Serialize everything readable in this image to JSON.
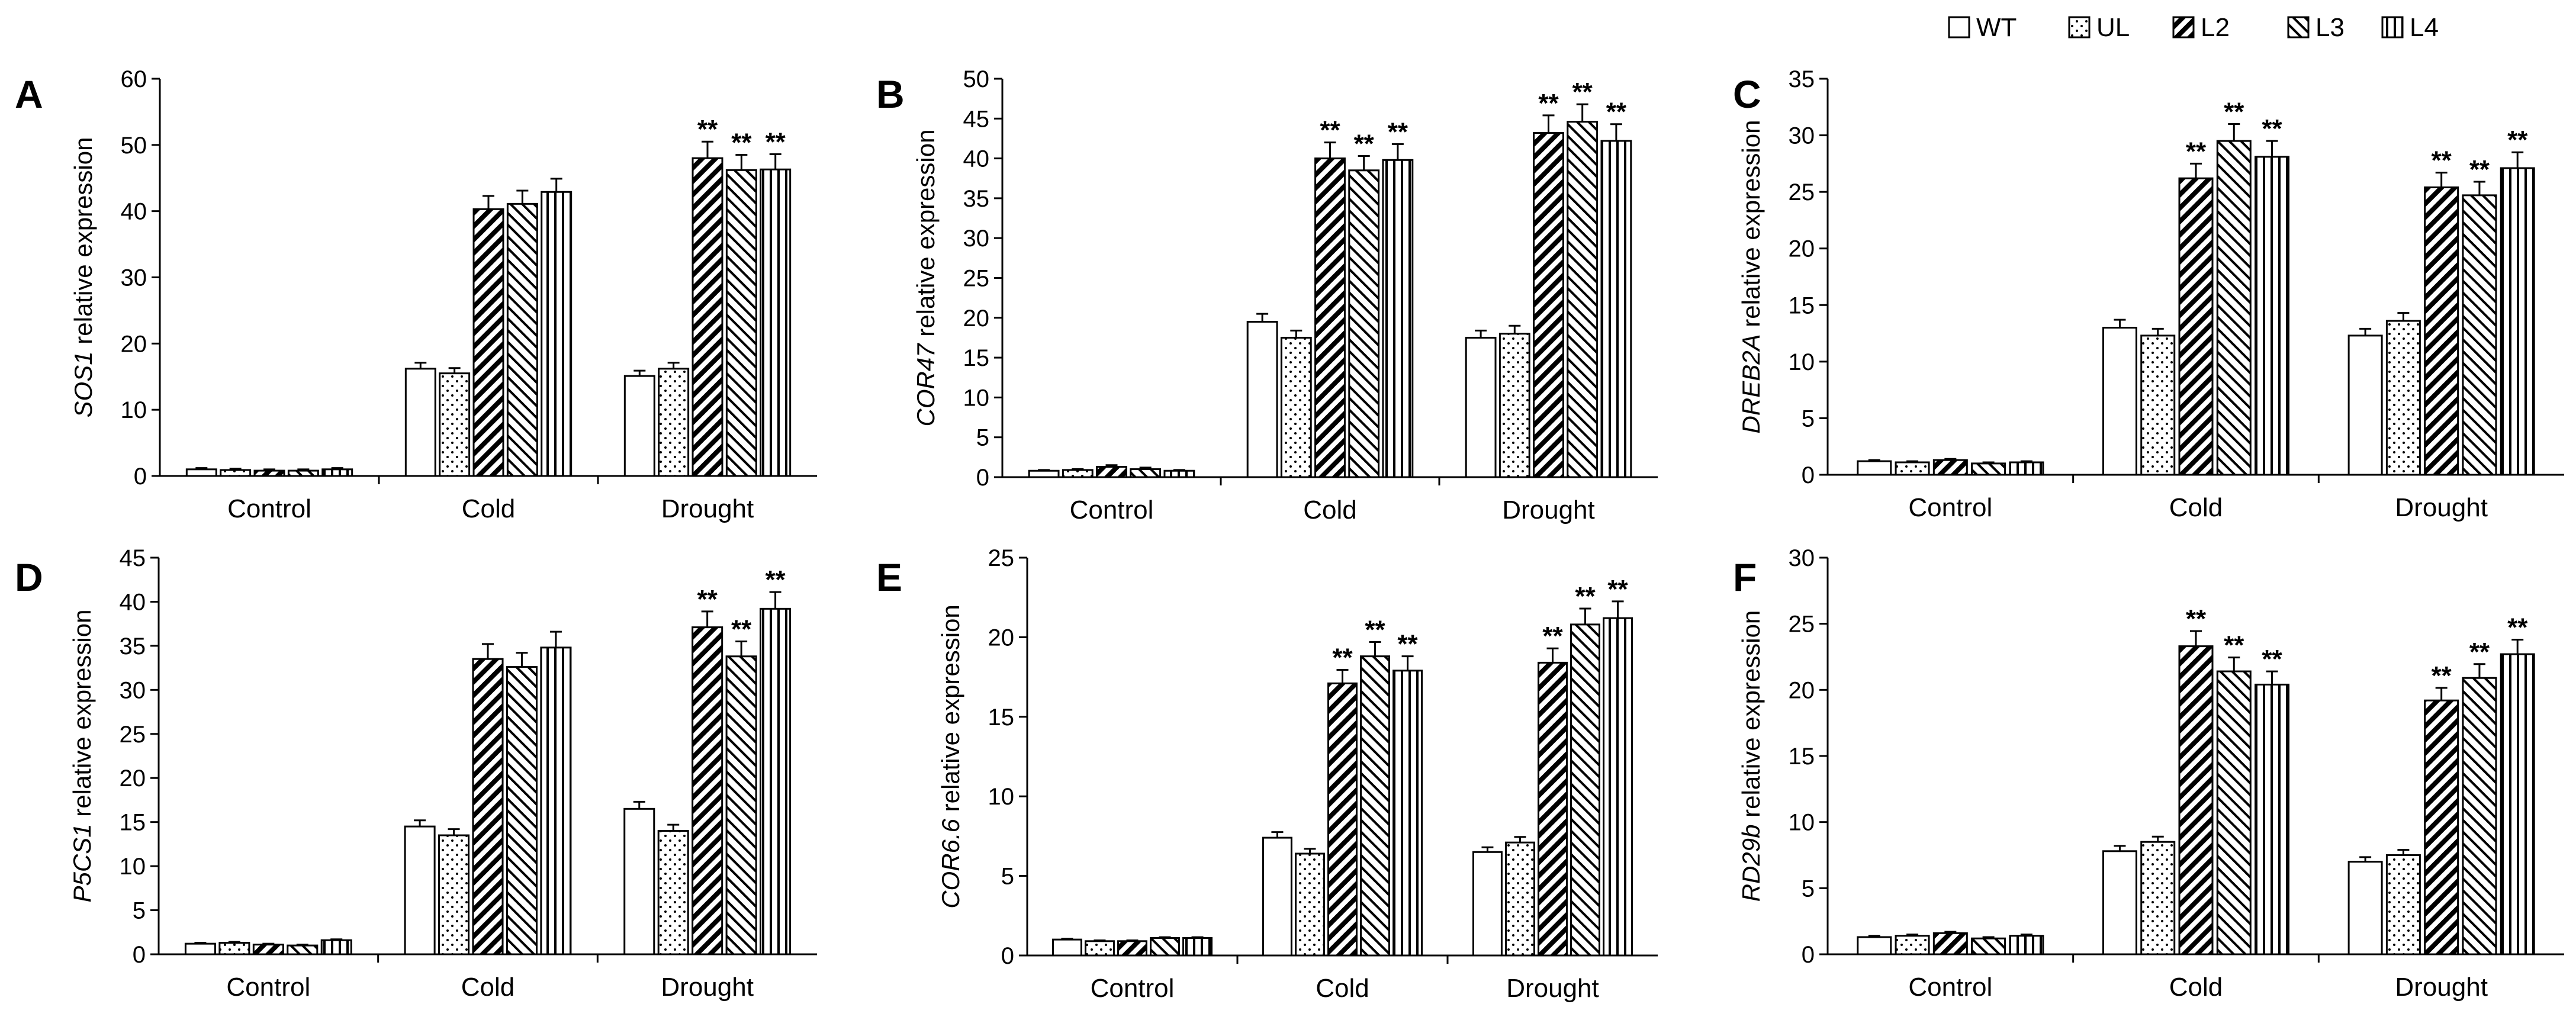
{
  "legend": [
    "WT",
    "UL",
    "L2",
    "L3",
    "L4"
  ],
  "chart_data": [
    {
      "type": "bar",
      "panel": "A",
      "ylabel_gene": "SOS1",
      "ylabel_rest": " relative expression",
      "categories": [
        "Control",
        "Cold",
        "Drought"
      ],
      "ylim": [
        0,
        60
      ],
      "yticks": [
        0,
        10,
        20,
        30,
        40,
        50,
        60
      ],
      "series": [
        {
          "name": "WT",
          "values": [
            1.0,
            16.2,
            15.1
          ],
          "errors": [
            0.2,
            0.9,
            0.8
          ]
        },
        {
          "name": "UL",
          "values": [
            0.9,
            15.5,
            16.2
          ],
          "errors": [
            0.2,
            0.8,
            0.9
          ]
        },
        {
          "name": "L2",
          "values": [
            0.8,
            40.3,
            48.0
          ],
          "errors": [
            0.2,
            2.0,
            2.5
          ]
        },
        {
          "name": "L3",
          "values": [
            0.8,
            41.1,
            46.2
          ],
          "errors": [
            0.2,
            2.0,
            2.3
          ]
        },
        {
          "name": "L4",
          "values": [
            1.0,
            42.9,
            46.3
          ],
          "errors": [
            0.2,
            2.0,
            2.3
          ]
        }
      ],
      "significance": [
        [
          "",
          "",
          ""
        ],
        [
          "",
          "",
          ""
        ],
        [
          "",
          "",
          "**"
        ],
        [
          "",
          "",
          "**"
        ],
        [
          "",
          "",
          "**"
        ]
      ]
    },
    {
      "type": "bar",
      "panel": "B",
      "ylabel_gene": "COR47",
      "ylabel_rest": " relative expression",
      "categories": [
        "Control",
        "Cold",
        "Drought"
      ],
      "ylim": [
        0,
        50
      ],
      "yticks": [
        0,
        5,
        10,
        15,
        20,
        25,
        30,
        35,
        40,
        45,
        50
      ],
      "series": [
        {
          "name": "WT",
          "values": [
            0.8,
            19.5,
            17.5
          ],
          "errors": [
            0.1,
            1.0,
            0.9
          ]
        },
        {
          "name": "UL",
          "values": [
            0.9,
            17.5,
            18.0
          ],
          "errors": [
            0.1,
            0.9,
            1.0
          ]
        },
        {
          "name": "L2",
          "values": [
            1.3,
            40.0,
            43.2
          ],
          "errors": [
            0.2,
            2.0,
            2.2
          ]
        },
        {
          "name": "L3",
          "values": [
            1.0,
            38.5,
            44.6
          ],
          "errors": [
            0.2,
            1.8,
            2.2
          ]
        },
        {
          "name": "L4",
          "values": [
            0.8,
            39.8,
            42.2
          ],
          "errors": [
            0.1,
            2.0,
            2.1
          ]
        }
      ],
      "significance": [
        [
          "",
          "",
          ""
        ],
        [
          "",
          "",
          ""
        ],
        [
          "",
          "**",
          "**"
        ],
        [
          "",
          "**",
          "**"
        ],
        [
          "",
          "**",
          "**"
        ]
      ]
    },
    {
      "type": "bar",
      "panel": "C",
      "ylabel_gene": "DREB2A",
      "ylabel_rest": " relative expression",
      "categories": [
        "Control",
        "Cold",
        "Drought"
      ],
      "ylim": [
        0,
        35
      ],
      "yticks": [
        0,
        5,
        10,
        15,
        20,
        25,
        30,
        35
      ],
      "series": [
        {
          "name": "WT",
          "values": [
            1.2,
            13.0,
            12.3
          ],
          "errors": [
            0.1,
            0.7,
            0.6
          ]
        },
        {
          "name": "UL",
          "values": [
            1.1,
            12.3,
            13.6
          ],
          "errors": [
            0.1,
            0.6,
            0.7
          ]
        },
        {
          "name": "L2",
          "values": [
            1.3,
            26.2,
            25.4
          ],
          "errors": [
            0.1,
            1.3,
            1.3
          ]
        },
        {
          "name": "L3",
          "values": [
            1.0,
            29.5,
            24.7
          ],
          "errors": [
            0.1,
            1.5,
            1.2
          ]
        },
        {
          "name": "L4",
          "values": [
            1.1,
            28.1,
            27.1
          ],
          "errors": [
            0.1,
            1.4,
            1.4
          ]
        }
      ],
      "significance": [
        [
          "",
          "",
          ""
        ],
        [
          "",
          "",
          ""
        ],
        [
          "",
          "**",
          "**"
        ],
        [
          "",
          "**",
          "**"
        ],
        [
          "",
          "**",
          "**"
        ]
      ]
    },
    {
      "type": "bar",
      "panel": "D",
      "ylabel_gene": "P5CS1",
      "ylabel_rest": " relative expression",
      "categories": [
        "Control",
        "Cold",
        "Drought"
      ],
      "ylim": [
        0,
        45
      ],
      "yticks": [
        0,
        5,
        10,
        15,
        20,
        25,
        30,
        35,
        40,
        45
      ],
      "series": [
        {
          "name": "WT",
          "values": [
            1.2,
            14.5,
            16.5
          ],
          "errors": [
            0.1,
            0.7,
            0.8
          ]
        },
        {
          "name": "UL",
          "values": [
            1.3,
            13.5,
            14.0
          ],
          "errors": [
            0.1,
            0.7,
            0.7
          ]
        },
        {
          "name": "L2",
          "values": [
            1.1,
            33.5,
            37.1
          ],
          "errors": [
            0.1,
            1.7,
            1.8
          ]
        },
        {
          "name": "L3",
          "values": [
            1.0,
            32.6,
            33.8
          ],
          "errors": [
            0.1,
            1.6,
            1.7
          ]
        },
        {
          "name": "L4",
          "values": [
            1.6,
            34.8,
            39.2
          ],
          "errors": [
            0.1,
            1.8,
            1.9
          ]
        }
      ],
      "significance": [
        [
          "",
          "",
          ""
        ],
        [
          "",
          "",
          ""
        ],
        [
          "",
          "",
          "**"
        ],
        [
          "",
          "",
          "**"
        ],
        [
          "",
          "",
          "**"
        ]
      ]
    },
    {
      "type": "bar",
      "panel": "E",
      "ylabel_gene": "COR6.6",
      "ylabel_rest": " relative expression",
      "categories": [
        "Control",
        "Cold",
        "Drought"
      ],
      "ylim": [
        0,
        25
      ],
      "yticks": [
        0,
        5,
        10,
        15,
        20,
        25
      ],
      "series": [
        {
          "name": "WT",
          "values": [
            1.0,
            7.4,
            6.5
          ],
          "errors": [
            0.05,
            0.35,
            0.3
          ]
        },
        {
          "name": "UL",
          "values": [
            0.9,
            6.4,
            7.1
          ],
          "errors": [
            0.05,
            0.3,
            0.35
          ]
        },
        {
          "name": "L2",
          "values": [
            0.9,
            17.1,
            18.4
          ],
          "errors": [
            0.05,
            0.85,
            0.9
          ]
        },
        {
          "name": "L3",
          "values": [
            1.1,
            18.8,
            20.8
          ],
          "errors": [
            0.05,
            0.9,
            1.0
          ]
        },
        {
          "name": "L4",
          "values": [
            1.1,
            17.9,
            21.2
          ],
          "errors": [
            0.05,
            0.9,
            1.05
          ]
        }
      ],
      "significance": [
        [
          "",
          "",
          ""
        ],
        [
          "",
          "",
          ""
        ],
        [
          "",
          "**",
          "**"
        ],
        [
          "",
          "**",
          "**"
        ],
        [
          "",
          "**",
          "**"
        ]
      ]
    },
    {
      "type": "bar",
      "panel": "F",
      "ylabel_gene": "RD29b",
      "ylabel_rest": " relative expression",
      "categories": [
        "Control",
        "Cold",
        "Drought"
      ],
      "ylim": [
        0,
        30
      ],
      "yticks": [
        0,
        5,
        10,
        15,
        20,
        25,
        30
      ],
      "series": [
        {
          "name": "WT",
          "values": [
            1.3,
            7.8,
            7.0
          ],
          "errors": [
            0.1,
            0.4,
            0.35
          ]
        },
        {
          "name": "UL",
          "values": [
            1.4,
            8.5,
            7.5
          ],
          "errors": [
            0.1,
            0.4,
            0.4
          ]
        },
        {
          "name": "L2",
          "values": [
            1.6,
            23.3,
            19.2
          ],
          "errors": [
            0.1,
            1.15,
            0.95
          ]
        },
        {
          "name": "L3",
          "values": [
            1.2,
            21.4,
            20.9
          ],
          "errors": [
            0.1,
            1.05,
            1.05
          ]
        },
        {
          "name": "L4",
          "values": [
            1.4,
            20.4,
            22.7
          ],
          "errors": [
            0.1,
            1.0,
            1.1
          ]
        }
      ],
      "significance": [
        [
          "",
          "",
          ""
        ],
        [
          "",
          "",
          ""
        ],
        [
          "",
          "**",
          "**"
        ],
        [
          "",
          "**",
          "**"
        ],
        [
          "",
          "**",
          "**"
        ]
      ]
    }
  ]
}
